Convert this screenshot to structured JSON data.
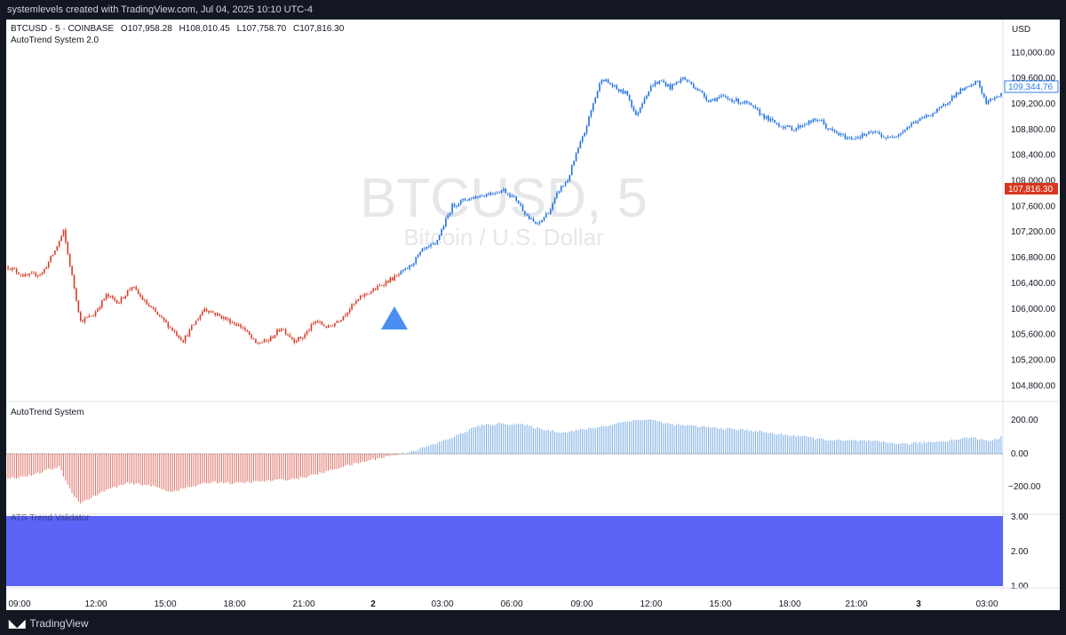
{
  "header": {
    "caption": "systemlevels created with TradingView.com, Jul 04, 2025 10:10 UTC-4"
  },
  "footer": {
    "brand": "TradingView"
  },
  "legend": {
    "symbol": "BTCUSD · 5 · COINBASE",
    "open": "O107,958.28",
    "high": "H108,010.45",
    "low": "L107,758.70",
    "close": "C107,816.30",
    "indicator": "AutoTrend System 2.0"
  },
  "watermark": {
    "symbol": "BTCUSD, 5",
    "description": "Bitcoin / U.S. Dollar"
  },
  "price_scale": {
    "currency": "USD",
    "ticks": [
      "110,000.00",
      "109,600.00",
      "109,200.00",
      "108,800.00",
      "108,400.00",
      "108,000.00",
      "107,600.00",
      "107,200.00",
      "106,800.00",
      "106,400.00",
      "106,000.00",
      "105,600.00",
      "105,200.00",
      "104,800.00"
    ],
    "current_price_label": "109,344.76",
    "close_label": "107,816.30"
  },
  "colors": {
    "bull": "#1e6fe0",
    "bear": "#d63a26",
    "osc_up": "#7fb0e6",
    "osc_down": "#e07a70",
    "validator": "#5c64f5",
    "marker": "#4a8ff0"
  },
  "panes": {
    "oscillator": {
      "title": "AutoTrend System",
      "ticks": [
        "200.00",
        "0.00",
        "−200.00"
      ]
    },
    "validator": {
      "title": "ATS Trend Validator",
      "ticks": [
        "3.00",
        "2.00",
        "1.00"
      ]
    }
  },
  "time_axis": {
    "labels": [
      "09:00",
      "12:00",
      "15:00",
      "18:00",
      "21:00",
      "2",
      "03:00",
      "06:00",
      "09:00",
      "12:00",
      "15:00",
      "18:00",
      "21:00",
      "3",
      "03:00"
    ]
  },
  "chart_data": [
    {
      "type": "candlestick",
      "title": "BTCUSD · 5 · COINBASE",
      "x_labels": [
        "09:00",
        "12:00",
        "15:00",
        "18:00",
        "21:00",
        "2",
        "03:00",
        "06:00",
        "09:00",
        "12:00",
        "15:00",
        "18:00",
        "21:00",
        "3",
        "03:00"
      ],
      "ylim": [
        104700,
        110150
      ],
      "approx_close_path": [
        [
          0,
          106650
        ],
        [
          8,
          106500
        ],
        [
          16,
          106550
        ],
        [
          22,
          106900
        ],
        [
          26,
          107200
        ],
        [
          30,
          106500
        ],
        [
          34,
          105800
        ],
        [
          40,
          105900
        ],
        [
          46,
          106200
        ],
        [
          52,
          106100
        ],
        [
          58,
          106350
        ],
        [
          64,
          106100
        ],
        [
          70,
          105900
        ],
        [
          76,
          105700
        ],
        [
          82,
          105500
        ],
        [
          86,
          105700
        ],
        [
          92,
          106000
        ],
        [
          98,
          105900
        ],
        [
          104,
          105800
        ],
        [
          110,
          105700
        ],
        [
          116,
          105450
        ],
        [
          122,
          105500
        ],
        [
          128,
          105700
        ],
        [
          134,
          105500
        ],
        [
          138,
          105550
        ],
        [
          144,
          105800
        ],
        [
          150,
          105700
        ],
        [
          156,
          105850
        ],
        [
          160,
          106000
        ],
        [
          166,
          106200
        ],
        [
          172,
          106300
        ],
        [
          176,
          106400
        ],
        [
          182,
          106500
        ],
        [
          188,
          106650
        ],
        [
          194,
          106900
        ],
        [
          200,
          107000
        ],
        [
          204,
          107300
        ],
        [
          208,
          107600
        ],
        [
          214,
          107700
        ],
        [
          220,
          107750
        ],
        [
          226,
          107800
        ],
        [
          232,
          107850
        ],
        [
          238,
          107700
        ],
        [
          244,
          107400
        ],
        [
          248,
          107300
        ],
        [
          254,
          107550
        ],
        [
          258,
          107850
        ],
        [
          262,
          108000
        ],
        [
          266,
          108400
        ],
        [
          270,
          108750
        ],
        [
          274,
          109200
        ],
        [
          278,
          109600
        ],
        [
          282,
          109500
        ],
        [
          286,
          109400
        ],
        [
          290,
          109350
        ],
        [
          294,
          109000
        ],
        [
          298,
          109300
        ],
        [
          302,
          109500
        ],
        [
          306,
          109550
        ],
        [
          310,
          109450
        ],
        [
          316,
          109600
        ],
        [
          322,
          109450
        ],
        [
          328,
          109250
        ],
        [
          334,
          109300
        ],
        [
          340,
          109250
        ],
        [
          346,
          109200
        ],
        [
          350,
          109100
        ],
        [
          356,
          108950
        ],
        [
          362,
          108850
        ],
        [
          368,
          108800
        ],
        [
          374,
          108900
        ],
        [
          380,
          108950
        ],
        [
          384,
          108800
        ],
        [
          390,
          108700
        ],
        [
          394,
          108650
        ],
        [
          400,
          108700
        ],
        [
          406,
          108750
        ],
        [
          412,
          108650
        ],
        [
          418,
          108750
        ],
        [
          424,
          108900
        ],
        [
          430,
          109000
        ],
        [
          436,
          109100
        ],
        [
          442,
          109300
        ],
        [
          446,
          109400
        ],
        [
          450,
          109450
        ],
        [
          454,
          109550
        ],
        [
          458,
          109200
        ],
        [
          462,
          109300
        ],
        [
          465,
          109344
        ]
      ],
      "signal": {
        "type": "buy-triangle",
        "near_label": "2"
      }
    },
    {
      "type": "bar",
      "title": "AutoTrend System",
      "ylim": [
        -320,
        260
      ],
      "approx_path": [
        [
          0,
          -150
        ],
        [
          12,
          -130
        ],
        [
          18,
          -100
        ],
        [
          24,
          -80
        ],
        [
          30,
          -240
        ],
        [
          34,
          -300
        ],
        [
          40,
          -260
        ],
        [
          46,
          -220
        ],
        [
          56,
          -180
        ],
        [
          66,
          -190
        ],
        [
          76,
          -230
        ],
        [
          86,
          -200
        ],
        [
          96,
          -170
        ],
        [
          106,
          -180
        ],
        [
          116,
          -170
        ],
        [
          126,
          -160
        ],
        [
          136,
          -150
        ],
        [
          146,
          -120
        ],
        [
          156,
          -80
        ],
        [
          166,
          -50
        ],
        [
          176,
          -20
        ],
        [
          184,
          0
        ],
        [
          190,
          20
        ],
        [
          200,
          60
        ],
        [
          210,
          110
        ],
        [
          220,
          170
        ],
        [
          230,
          185
        ],
        [
          240,
          180
        ],
        [
          250,
          150
        ],
        [
          260,
          130
        ],
        [
          270,
          150
        ],
        [
          280,
          170
        ],
        [
          290,
          200
        ],
        [
          300,
          210
        ],
        [
          310,
          180
        ],
        [
          320,
          170
        ],
        [
          330,
          160
        ],
        [
          340,
          150
        ],
        [
          350,
          140
        ],
        [
          360,
          120
        ],
        [
          370,
          110
        ],
        [
          380,
          90
        ],
        [
          390,
          80
        ],
        [
          400,
          80
        ],
        [
          410,
          70
        ],
        [
          420,
          60
        ],
        [
          430,
          70
        ],
        [
          440,
          80
        ],
        [
          450,
          100
        ],
        [
          460,
          80
        ],
        [
          465,
          100
        ]
      ]
    },
    {
      "type": "area",
      "title": "ATS Trend Validator",
      "ylim": [
        1,
        3
      ],
      "value": 3
    }
  ]
}
